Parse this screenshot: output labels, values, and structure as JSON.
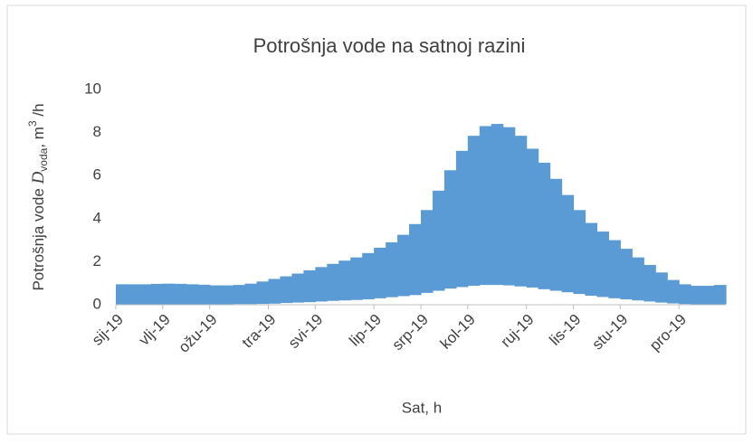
{
  "chart_data": {
    "type": "band",
    "title": "Potrošnja vode na satnoj razini",
    "y_label": {
      "text": "Potrošnja vode ",
      "symbol": "D",
      "subscript": "voda",
      "unit": ", m",
      "superscript": "3",
      "unit_tail": " /h"
    },
    "x_label": "Sat, h",
    "categories": [
      "sij-19",
      null,
      null,
      null,
      "vlj-19",
      null,
      null,
      null,
      "ožu-19",
      null,
      null,
      null,
      null,
      "tra-19",
      null,
      null,
      null,
      "svi-19",
      null,
      null,
      null,
      null,
      "lip-19",
      null,
      null,
      null,
      "srp-19",
      null,
      null,
      null,
      "kol-19",
      null,
      null,
      null,
      null,
      "ruj-19",
      null,
      null,
      null,
      "lis-19",
      null,
      null,
      null,
      "stu-19",
      null,
      null,
      null,
      null,
      "pro-19",
      null,
      null,
      null
    ],
    "color": "#5b9bd5",
    "upper": [
      0.95,
      0.95,
      0.95,
      0.97,
      0.98,
      0.97,
      0.95,
      0.93,
      0.9,
      0.9,
      0.92,
      0.98,
      1.08,
      1.2,
      1.32,
      1.45,
      1.6,
      1.75,
      1.9,
      2.05,
      2.2,
      2.4,
      2.65,
      2.9,
      3.25,
      3.75,
      4.4,
      5.3,
      6.25,
      7.15,
      7.85,
      8.3,
      8.4,
      8.25,
      7.85,
      7.25,
      6.6,
      5.85,
      5.1,
      4.4,
      3.8,
      3.4,
      3.0,
      2.6,
      2.2,
      1.85,
      1.5,
      1.15,
      0.95,
      0.88,
      0.88,
      0.92
    ],
    "lower": [
      0.02,
      0.02,
      0.02,
      0.02,
      0.02,
      0.02,
      0.02,
      0.02,
      0.02,
      0.02,
      0.03,
      0.03,
      0.04,
      0.05,
      0.08,
      0.1,
      0.12,
      0.15,
      0.18,
      0.2,
      0.22,
      0.25,
      0.3,
      0.35,
      0.4,
      0.45,
      0.55,
      0.65,
      0.75,
      0.82,
      0.88,
      0.92,
      0.92,
      0.9,
      0.85,
      0.8,
      0.72,
      0.65,
      0.58,
      0.5,
      0.42,
      0.36,
      0.3,
      0.25,
      0.2,
      0.15,
      0.1,
      0.06,
      0.03,
      0.02,
      0.02,
      0.02
    ],
    "ylim": [
      0,
      10
    ],
    "yticks": [
      0,
      2,
      4,
      6,
      8,
      10
    ],
    "grid": false
  }
}
